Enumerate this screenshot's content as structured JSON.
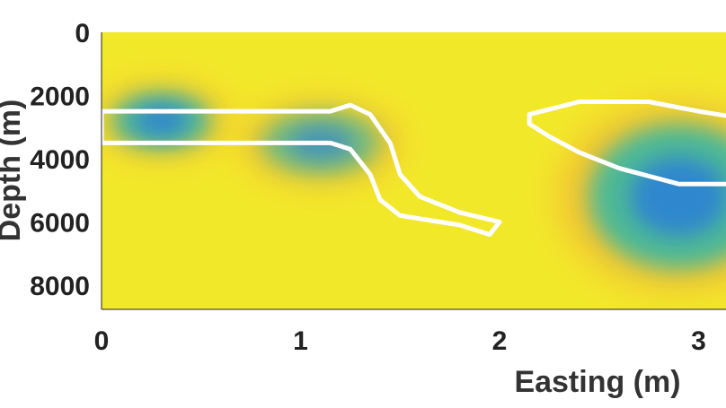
{
  "chart_data": {
    "type": "heatmap",
    "title": "",
    "xlabel": "Easting (m)",
    "ylabel": "Depth (m)",
    "xlim": [
      0,
      3.2
    ],
    "ylim": [
      8800,
      0
    ],
    "y_inverted": true,
    "x_ticks": [
      "0",
      "1",
      "2",
      "3"
    ],
    "y_ticks": [
      "0",
      "2000",
      "4000",
      "6000",
      "8000"
    ],
    "grid": false,
    "legend": "none",
    "colormap": "parula",
    "colors": {
      "background": "#f2e82a",
      "anomaly_core": "#2a7fd8",
      "anomaly_mid": "#3cb8a0",
      "halo": "#f0a53a",
      "contour": "#ffffff"
    },
    "anomalies": [
      {
        "name": "shallow-west",
        "x": 0.3,
        "y": 2800,
        "rx": 0.25,
        "ry": 900,
        "value": 1.0
      },
      {
        "name": "middle",
        "x": 1.1,
        "y": 3500,
        "rx": 0.3,
        "ry": 1000,
        "value": 0.75
      },
      {
        "name": "deep-east",
        "x": 2.9,
        "y": 5200,
        "rx": 0.45,
        "ry": 2300,
        "value": 1.0
      }
    ],
    "contours": [
      {
        "name": "model-outline-1",
        "points": [
          [
            0,
            2500
          ],
          [
            1.15,
            2500
          ],
          [
            1.25,
            2300
          ],
          [
            1.35,
            2600
          ],
          [
            1.45,
            3500
          ],
          [
            1.5,
            4500
          ],
          [
            1.6,
            5200
          ],
          [
            1.8,
            5700
          ],
          [
            2.0,
            6000
          ],
          [
            1.95,
            6400
          ],
          [
            1.8,
            6100
          ],
          [
            1.7,
            6000
          ],
          [
            1.5,
            5800
          ],
          [
            1.4,
            5300
          ],
          [
            1.35,
            4500
          ],
          [
            1.25,
            3700
          ],
          [
            1.15,
            3500
          ],
          [
            0,
            3500
          ]
        ]
      },
      {
        "name": "model-outline-2",
        "points": [
          [
            2.15,
            2600
          ],
          [
            2.4,
            2200
          ],
          [
            2.75,
            2200
          ],
          [
            3.0,
            2500
          ],
          [
            3.2,
            2700
          ],
          [
            3.2,
            4800
          ],
          [
            2.9,
            4800
          ],
          [
            2.6,
            4300
          ],
          [
            2.4,
            3800
          ],
          [
            2.25,
            3300
          ],
          [
            2.15,
            2900
          ]
        ]
      }
    ]
  }
}
